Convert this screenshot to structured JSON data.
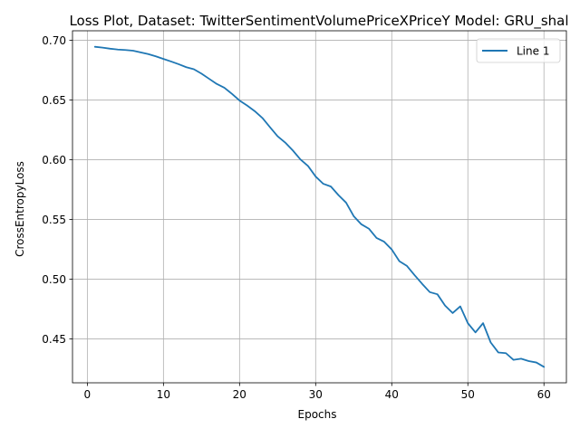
{
  "chart_data": {
    "type": "line",
    "title": "Loss Plot, Dataset: TwitterSentimentVolumePriceXPriceY Model: GRU_shal",
    "xlabel": "Epochs",
    "ylabel": "CrossEntropyLoss",
    "xlim": [
      -1.95,
      62.95
    ],
    "ylim": [
      0.4132,
      0.7079
    ],
    "xticks": [
      0,
      10,
      20,
      30,
      40,
      50,
      60
    ],
    "yticks": [
      0.45,
      0.5,
      0.55,
      0.6,
      0.65,
      0.7
    ],
    "xtick_labels": [
      "0",
      "10",
      "20",
      "30",
      "40",
      "50",
      "60"
    ],
    "ytick_labels": [
      "0.45",
      "0.50",
      "0.55",
      "0.60",
      "0.65",
      "0.70"
    ],
    "grid": true,
    "legend": {
      "position": "top-right"
    },
    "series": [
      {
        "name": "Line 1",
        "color": "#1f77b4",
        "x": [
          1,
          2,
          3,
          4,
          5,
          6,
          7,
          8,
          9,
          10,
          11,
          12,
          13,
          14,
          15,
          16,
          17,
          18,
          19,
          20,
          21,
          22,
          23,
          24,
          25,
          26,
          27,
          28,
          29,
          30,
          31,
          32,
          33,
          34,
          35,
          36,
          37,
          38,
          39,
          40,
          41,
          42,
          43,
          44,
          45,
          46,
          47,
          48,
          49,
          50,
          51,
          52,
          53,
          54,
          55,
          56,
          57,
          58,
          59,
          60
        ],
        "y": [
          0.6945,
          0.6938,
          0.6929,
          0.6922,
          0.6918,
          0.6912,
          0.6898,
          0.6884,
          0.6865,
          0.6843,
          0.6822,
          0.6799,
          0.6774,
          0.6757,
          0.672,
          0.6677,
          0.6634,
          0.6602,
          0.6551,
          0.6495,
          0.6453,
          0.6406,
          0.6349,
          0.6272,
          0.6196,
          0.6143,
          0.6077,
          0.6002,
          0.5947,
          0.5859,
          0.5798,
          0.5775,
          0.5703,
          0.564,
          0.5527,
          0.5459,
          0.5422,
          0.5345,
          0.5313,
          0.5248,
          0.515,
          0.511,
          0.5033,
          0.496,
          0.4891,
          0.4873,
          0.4779,
          0.4716,
          0.4772,
          0.4631,
          0.4554,
          0.4631,
          0.447,
          0.4386,
          0.438,
          0.4324,
          0.4334,
          0.4314,
          0.4302,
          0.4265
        ]
      }
    ]
  }
}
